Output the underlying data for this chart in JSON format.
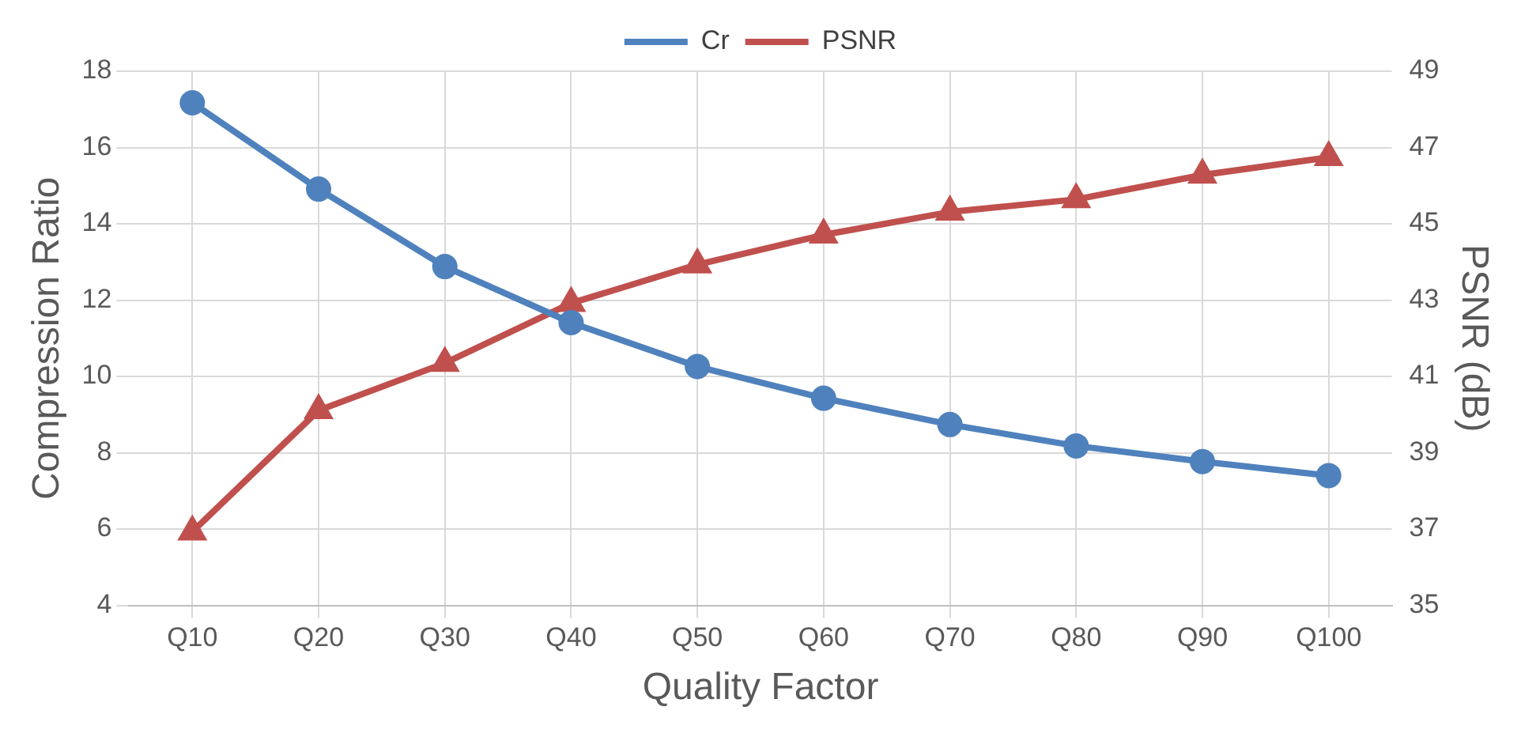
{
  "chart_data": {
    "type": "line",
    "xlabel": "Quality Factor",
    "ylabel": "Compression Ratio",
    "y2label": "PSNR (dB)",
    "categories": [
      "Q10",
      "Q20",
      "Q30",
      "Q40",
      "Q50",
      "Q60",
      "Q70",
      "Q80",
      "Q90",
      "Q100"
    ],
    "series": [
      {
        "name": "Cr",
        "color": "#4f81bd",
        "marker": "circle",
        "values": [
          17.17,
          14.91,
          12.88,
          11.41,
          10.26,
          9.43,
          8.74,
          8.18,
          7.77,
          7.4
        ]
      },
      {
        "name": "PSNR",
        "color": "#c0504d",
        "marker": "triangle",
        "axis": "y2",
        "values": [
          36.93,
          40.11,
          41.35,
          42.92,
          43.93,
          44.71,
          45.31,
          45.64,
          46.28,
          46.74
        ]
      }
    ],
    "ylim": [
      4,
      18
    ],
    "yticks": [
      4,
      6,
      8,
      10,
      12,
      14,
      16,
      18
    ],
    "y2lim": [
      35,
      49
    ],
    "y2ticks": [
      35,
      37,
      39,
      41,
      43,
      45,
      47,
      49
    ],
    "grid": true,
    "legend": "top"
  }
}
